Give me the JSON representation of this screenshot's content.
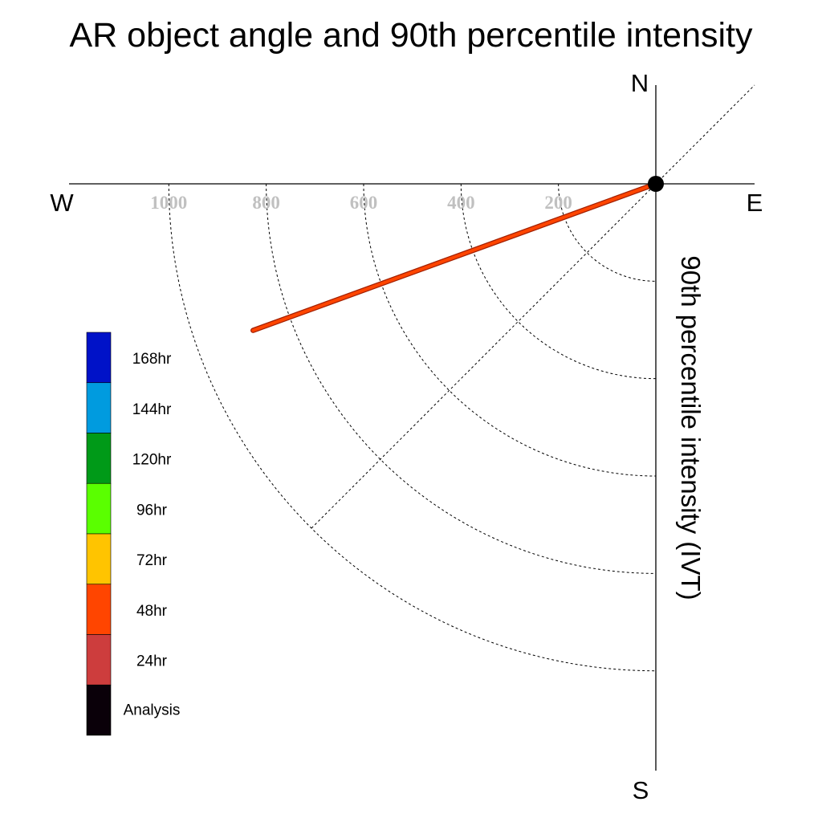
{
  "chart_data": {
    "type": "polar",
    "title": "AR object angle and 90th percentile intensity",
    "ylabel": "90th percentile intensity (IVT)",
    "directions": {
      "north": "N",
      "south": "S",
      "east": "E",
      "west": "W"
    },
    "radial_ticks": [
      200,
      400,
      600,
      800,
      1000
    ],
    "radial_ticks_labels": [
      "200",
      "400",
      "600",
      "800",
      "1000"
    ],
    "radial_max": 1200,
    "reference_angle_deg": 45,
    "series": [
      {
        "name": "48hr",
        "color": "#ff4500",
        "start": {
          "angle_from_west_deg": 0,
          "intensity": 0
        },
        "end": {
          "angle_from_west_deg": 20,
          "intensity": 880
        }
      }
    ],
    "origin_marker": {
      "color": "#000000"
    },
    "legend": [
      {
        "label": "168hr",
        "color": "#0012c8"
      },
      {
        "label": "144hr",
        "color": "#009bdf"
      },
      {
        "label": "120hr",
        "color": "#009a18"
      },
      {
        "label": "96hr",
        "color": "#5aff00"
      },
      {
        "label": "72hr",
        "color": "#ffc400"
      },
      {
        "label": "48hr",
        "color": "#ff4500"
      },
      {
        "label": "24hr",
        "color": "#cd3d3d"
      },
      {
        "label": "Analysis",
        "color": "#0a0009"
      }
    ]
  }
}
